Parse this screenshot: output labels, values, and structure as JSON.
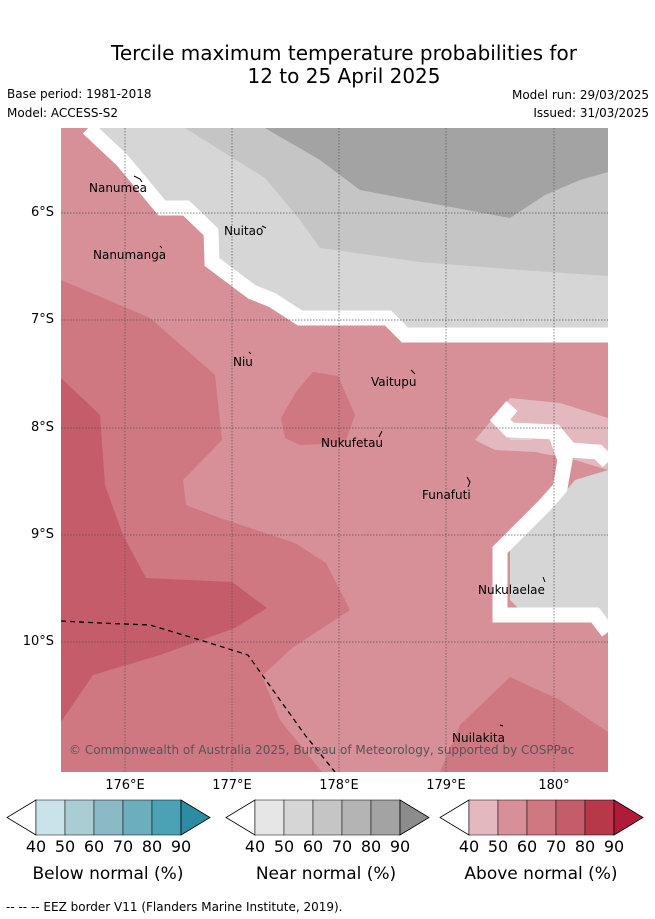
{
  "header": {
    "title_line1": "Tercile maximum temperature probabilities for",
    "title_line2": "12 to 25 April 2025",
    "base_period": "Base period: 1981-2018",
    "model": "Model: ACCESS-S2",
    "model_run": "Model run: 29/03/2025",
    "issued": "Issued: 31/03/2025"
  },
  "map": {
    "lat_labels": [
      "6°S",
      "7°S",
      "8°S",
      "9°S",
      "10°S"
    ],
    "lon_labels": [
      "176°E",
      "177°E",
      "178°E",
      "179°E",
      "180°"
    ],
    "places": [
      {
        "name": "Nanumea"
      },
      {
        "name": "Nuitao"
      },
      {
        "name": "Nanumanga"
      },
      {
        "name": "Niu"
      },
      {
        "name": "Vaitupu"
      },
      {
        "name": "Nukufetau"
      },
      {
        "name": "Funafuti"
      },
      {
        "name": "Nukulaelae"
      },
      {
        "name": "Nuilakita"
      }
    ],
    "copyright": "© Commonwealth of Australia 2025, Bureau of Meteorology, supported by COSPPac"
  },
  "colorbars": [
    {
      "title": "Below normal (%)",
      "ticks": [
        "40",
        "50",
        "60",
        "70",
        "80",
        "90"
      ],
      "colors": [
        "#cae3ea",
        "#a9cdd3",
        "#8bbac6",
        "#6daebe",
        "#4aa2b4",
        "#2b8ca3"
      ]
    },
    {
      "title": "Near normal (%)",
      "ticks": [
        "40",
        "50",
        "60",
        "70",
        "80",
        "90"
      ],
      "colors": [
        "#e6e6e6",
        "#d6d6d6",
        "#c5c5c5",
        "#b4b4b4",
        "#a3a3a3",
        "#8c8c8c"
      ]
    },
    {
      "title": "Above normal (%)",
      "ticks": [
        "40",
        "50",
        "60",
        "70",
        "80",
        "90"
      ],
      "colors": [
        "#e3b8bf",
        "#d78f98",
        "#cf7882",
        "#c45c6a",
        "#b73949",
        "#b01b3a"
      ]
    }
  ],
  "footer": {
    "legend_text": "-- -- -- EEZ border V11 (Flanders Marine Institute, 2019)."
  }
}
